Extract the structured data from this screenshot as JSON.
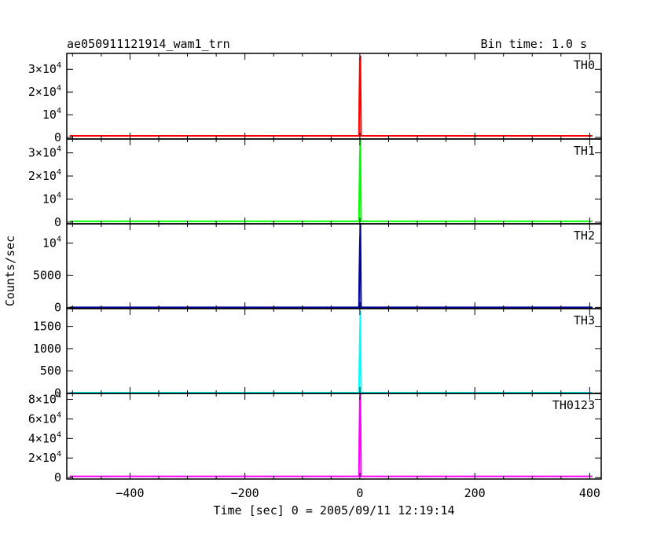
{
  "chart_data": {
    "type": "line",
    "title": "ae050911121914_wam1_trn",
    "bin_time": "Bin time: 1.0 s",
    "xlabel": "Time [sec] 0 = 2005/09/11 12:19:14",
    "ylabel": "Counts/sec",
    "xlim": [
      -510,
      420
    ],
    "x_ticks": [
      -400,
      -200,
      0,
      200,
      400
    ],
    "x_tick_labels": [
      "−400",
      "−200",
      "0",
      "200",
      "400"
    ],
    "grid": false,
    "shared_x_axis": true,
    "panels": [
      {
        "name": "TH0",
        "color": "#ff0000",
        "ylim": [
          -700,
          37000
        ],
        "ticks": [
          {
            "value": 0,
            "base": "0",
            "exp": ""
          },
          {
            "value": 10000,
            "base": "10",
            "exp": "4"
          },
          {
            "value": 20000,
            "base": "2×10",
            "exp": "4"
          },
          {
            "value": 30000,
            "base": "3×10",
            "exp": "4"
          }
        ],
        "baseline": 700,
        "peak": {
          "x": [
            -1,
            0,
            1,
            2
          ],
          "y": [
            17000,
            34000,
            36000,
            700
          ]
        }
      },
      {
        "name": "TH1",
        "color": "#00ff00",
        "ylim": [
          -700,
          36000
        ],
        "ticks": [
          {
            "value": 0,
            "base": "0",
            "exp": ""
          },
          {
            "value": 10000,
            "base": "10",
            "exp": "4"
          },
          {
            "value": 20000,
            "base": "2×10",
            "exp": "4"
          },
          {
            "value": 30000,
            "base": "3×10",
            "exp": "4"
          }
        ],
        "baseline": 400,
        "peak": {
          "x": [
            -1,
            0,
            1,
            2
          ],
          "y": [
            12000,
            29000,
            36000,
            400
          ]
        }
      },
      {
        "name": "TH2",
        "color": "#0000a0",
        "ylim": [
          -200,
          13000
        ],
        "ticks": [
          {
            "value": 0,
            "base": "0",
            "exp": ""
          },
          {
            "value": 5000,
            "base": "5000",
            "exp": ""
          },
          {
            "value": 10000,
            "base": "10",
            "exp": "4"
          }
        ],
        "baseline": 0,
        "peak": {
          "x": [
            -1,
            0,
            1,
            2
          ],
          "y": [
            5000,
            10000,
            13000,
            0
          ]
        }
      },
      {
        "name": "TH3",
        "color": "#00ffff",
        "ylim": [
          -10,
          1900
        ],
        "ticks": [
          {
            "value": 0,
            "base": "0",
            "exp": ""
          },
          {
            "value": 500,
            "base": "500",
            "exp": ""
          },
          {
            "value": 1000,
            "base": "1000",
            "exp": ""
          },
          {
            "value": 1500,
            "base": "1500",
            "exp": ""
          }
        ],
        "baseline": 8,
        "peak": {
          "x": [
            -1,
            0,
            1,
            2
          ],
          "y": [
            500,
            1300,
            1850,
            8
          ]
        }
      },
      {
        "name": "TH0123",
        "color": "#ff00ff",
        "ylim": [
          -1500,
          86000
        ],
        "ticks": [
          {
            "value": 0,
            "base": "0",
            "exp": ""
          },
          {
            "value": 20000,
            "base": "2×10",
            "exp": "4"
          },
          {
            "value": 40000,
            "base": "4×10",
            "exp": "4"
          },
          {
            "value": 60000,
            "base": "6×10",
            "exp": "4"
          },
          {
            "value": 80000,
            "base": "8×10",
            "exp": "4"
          }
        ],
        "baseline": 1200,
        "peak": {
          "x": [
            -1,
            0,
            1,
            2
          ],
          "y": [
            40000,
            80000,
            86000,
            1200
          ]
        }
      }
    ]
  }
}
